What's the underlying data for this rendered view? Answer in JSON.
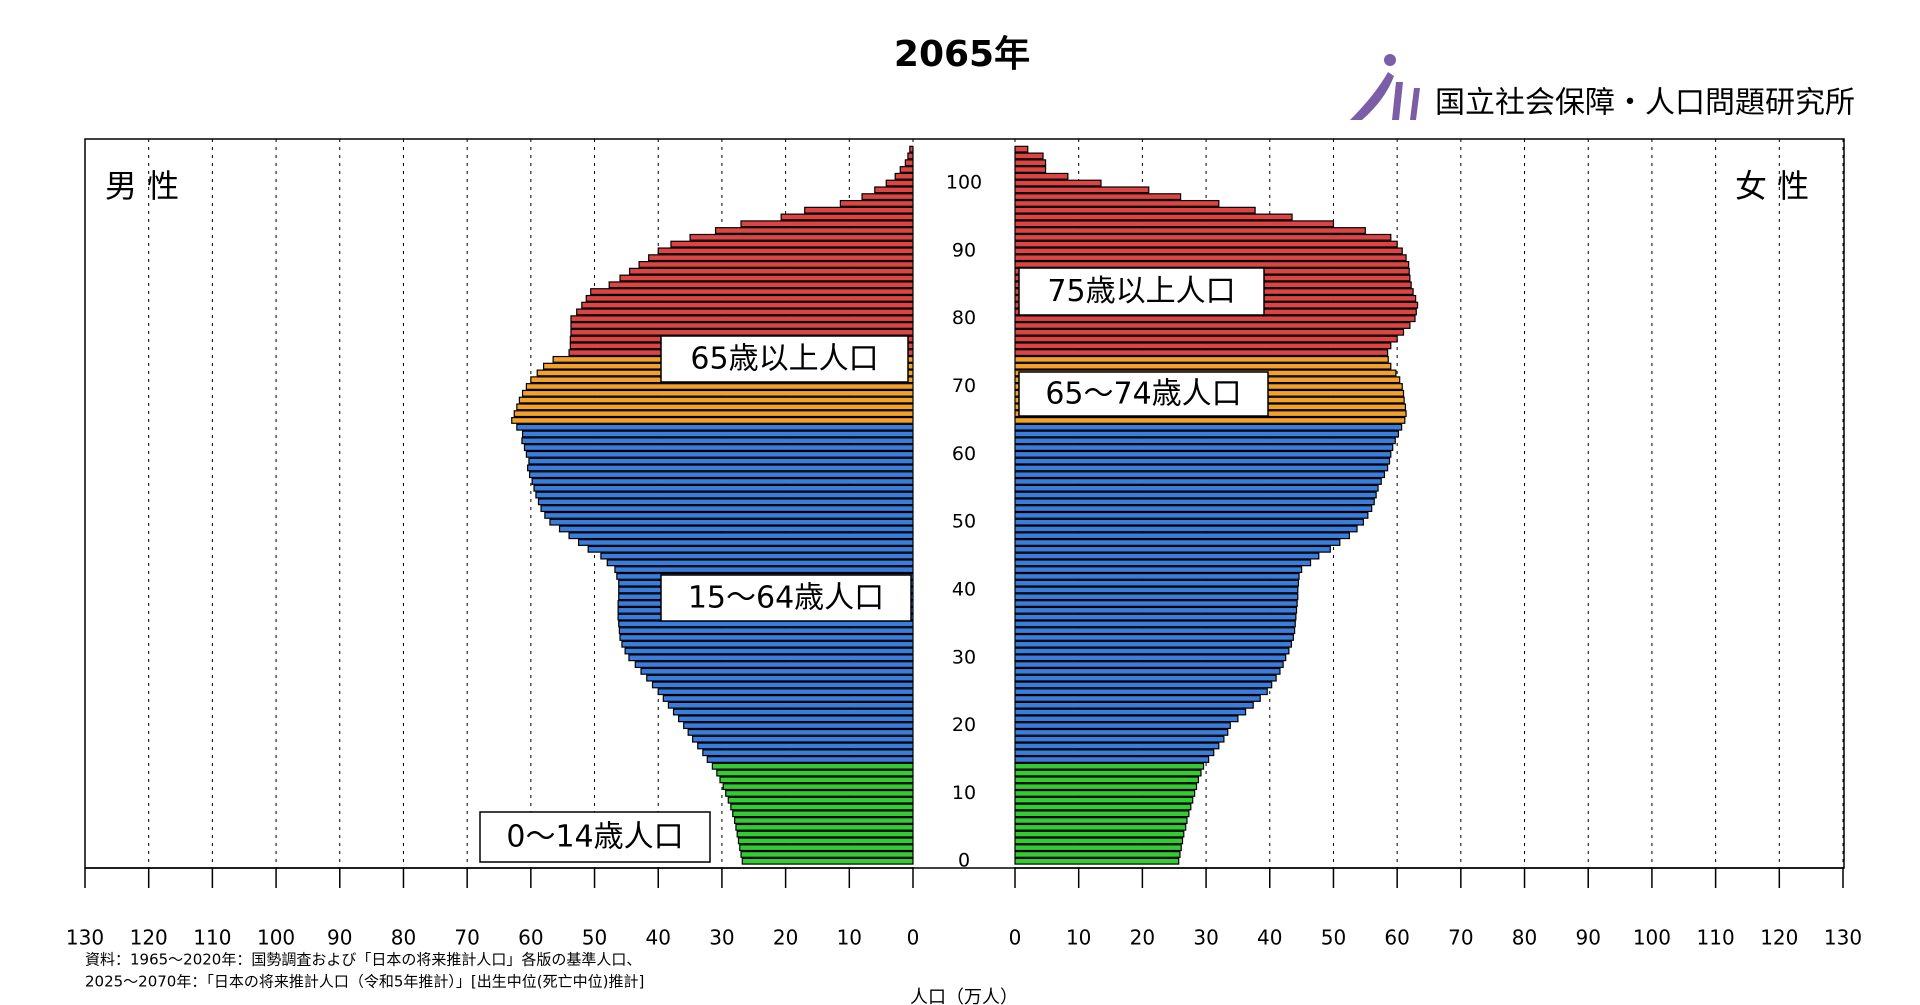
{
  "chart_data": {
    "type": "pyramid",
    "title": "2065年",
    "org": "国立社会保障・人口問題研究所",
    "source": [
      "資料：1965〜2020年：国勢調査および「日本の将来推計人口」各版の基準人口、",
      "2025〜2070年：「日本の将来推計人口（令和5年推計）」[出生中位(死亡中位)推計]"
    ],
    "xlabel": "人口（万人）",
    "x": [
      0,
      1,
      2,
      3,
      4,
      5,
      6,
      7,
      8,
      9,
      10,
      11,
      12,
      13,
      14,
      15,
      16,
      17,
      18,
      19,
      20,
      21,
      22,
      23,
      24,
      25,
      26,
      27,
      28,
      29,
      30,
      31,
      32,
      33,
      34,
      35,
      36,
      37,
      38,
      39,
      40,
      41,
      42,
      43,
      44,
      45,
      46,
      47,
      48,
      49,
      50,
      51,
      52,
      53,
      54,
      55,
      56,
      57,
      58,
      59,
      60,
      61,
      62,
      63,
      64,
      65,
      66,
      67,
      68,
      69,
      70,
      71,
      72,
      73,
      74,
      75,
      76,
      77,
      78,
      79,
      80,
      81,
      82,
      83,
      84,
      85,
      86,
      87,
      88,
      89,
      90,
      91,
      92,
      93,
      94,
      95,
      96,
      97,
      98,
      99,
      100,
      101,
      102,
      103,
      104,
      105
    ],
    "ylim": [
      -1,
      106.5
    ],
    "yticks": [
      0,
      10,
      20,
      30,
      40,
      50,
      60,
      70,
      80,
      90,
      100
    ],
    "xlim": [
      0,
      130
    ],
    "xticks": [
      0,
      10,
      20,
      30,
      40,
      50,
      60,
      70,
      80,
      90,
      100,
      110,
      120,
      130
    ],
    "grid": true,
    "age_groups": [
      {
        "start": 0,
        "color": "#33cc33"
      },
      {
        "start": 15,
        "color": "#3b7ddd"
      },
      {
        "start": 65,
        "color": "#f2a22a"
      },
      {
        "start": 75,
        "color": "#dd4444"
      }
    ],
    "series": [
      {
        "name": "男 性",
        "side": "left",
        "values": [
          26.8,
          27,
          27.2,
          27.4,
          27.6,
          27.8,
          28,
          28.3,
          28.6,
          29,
          29.4,
          29.8,
          30.3,
          30.8,
          31.5,
          32.3,
          33,
          33.8,
          34.6,
          35.3,
          36,
          36.8,
          37.6,
          38.4,
          39.2,
          40,
          40.9,
          41.8,
          42.7,
          43.6,
          44.6,
          45.2,
          45.7,
          46,
          46.1,
          46.2,
          46.3,
          46.3,
          46.3,
          46.2,
          46.2,
          46.2,
          46.5,
          46.8,
          48,
          49,
          51,
          52.5,
          54,
          55.5,
          57,
          57.8,
          58.4,
          58.8,
          59.2,
          59.5,
          59.8,
          60.2,
          60.5,
          60.3,
          60.7,
          61,
          61.4,
          61.3,
          62.2,
          63,
          62.6,
          62.2,
          61.8,
          61.3,
          60.7,
          60,
          59,
          58,
          56.5,
          54,
          53.8,
          53.8,
          53.7,
          53.7,
          53.7,
          52.8,
          52,
          51.3,
          50.6,
          47.7,
          46,
          44.5,
          43,
          41.5,
          40,
          38,
          35,
          31,
          27,
          20.7,
          17,
          11.4,
          8,
          6,
          4.2,
          2.8,
          2,
          1.2,
          0.8,
          0.5
        ]
      },
      {
        "name": "女 性",
        "side": "right",
        "values": [
          25.7,
          25.9,
          26.1,
          26.3,
          26.5,
          26.8,
          27,
          27.3,
          27.6,
          27.9,
          28.2,
          28.5,
          28.8,
          29.2,
          29.6,
          30.4,
          31.2,
          32,
          32.8,
          33.4,
          33.8,
          35,
          36.2,
          37.4,
          38.5,
          39.6,
          40.3,
          41,
          41.6,
          42.1,
          42.5,
          43,
          43.4,
          43.7,
          43.9,
          44,
          44.1,
          44.2,
          44.3,
          44.4,
          44.4,
          44.5,
          44.6,
          45,
          46.4,
          47.7,
          49.5,
          51,
          52.5,
          53.7,
          54.7,
          55.4,
          56,
          56.4,
          56.7,
          57,
          57.5,
          58,
          58.5,
          58.8,
          59,
          59.3,
          59.7,
          60.2,
          60.7,
          61.2,
          61.4,
          61.3,
          61.1,
          61,
          60.8,
          60.4,
          59.8,
          59,
          58.6,
          58.5,
          59,
          60,
          61,
          62,
          62.8,
          63,
          63.2,
          62.9,
          62.5,
          62.2,
          62,
          61.9,
          61.8,
          61.4,
          60.8,
          60,
          59,
          55,
          50,
          43.5,
          37.7,
          32,
          26,
          21,
          13.5,
          8.3,
          4.8,
          4.8,
          4.4,
          2
        ]
      }
    ],
    "annotations": [
      "0〜14歳人口",
      "15〜64歳人口",
      "65歳以上人口",
      "75歳以上人口",
      "65〜74歳人口"
    ]
  }
}
